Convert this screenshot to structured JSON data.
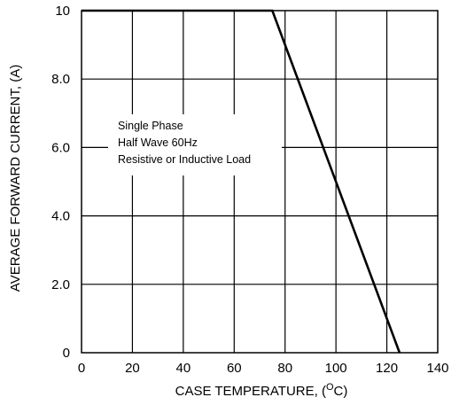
{
  "chart_data": {
    "type": "line",
    "title": "",
    "xlabel": "CASE TEMPERATURE, (",
    "xlabel_sup": "O",
    "xlabel_end": "C)",
    "ylabel": "AVERAGE FORWARD CURRENT, (A)",
    "xlim": [
      0,
      140
    ],
    "ylim": [
      0,
      10
    ],
    "x_ticks": [
      "0",
      "20",
      "40",
      "60",
      "80",
      "100",
      "120",
      "140"
    ],
    "y_ticks": [
      "0",
      "2.0",
      "4.0",
      "6.0",
      "8.0",
      "10"
    ],
    "grid": true,
    "series": [
      {
        "x": [
          0,
          75,
          125
        ],
        "y": [
          10,
          10,
          0
        ]
      }
    ],
    "annotation": [
      "Single Phase",
      "Half Wave 60Hz",
      "Resistive or Inductive Load"
    ]
  }
}
